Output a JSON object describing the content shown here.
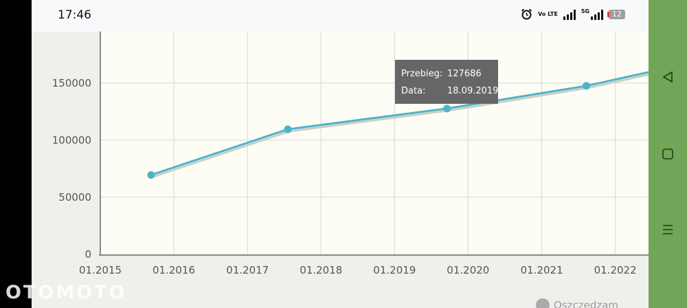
{
  "status_bar": {
    "time": "17:46",
    "volte": "Vo LTE",
    "network": "5G",
    "battery": "12"
  },
  "chart_data": {
    "type": "line",
    "x_tick_labels": [
      "01.2015",
      "01.2016",
      "01.2017",
      "01.2018",
      "01.2019",
      "01.2020",
      "01.2021",
      "01.2022"
    ],
    "y_tick_labels": [
      "0",
      "50000",
      "100000",
      "150000"
    ],
    "xlim": [
      "2015-01-01",
      "2022-06-15"
    ],
    "ylim": [
      0,
      195000
    ],
    "series": [
      {
        "color": "#4db3c8",
        "points": [
          {
            "x": "2015-09-10",
            "y": 69500
          },
          {
            "x": "2017-07-20",
            "y": 109500
          },
          {
            "x": "2019-09-18",
            "y": 127686
          },
          {
            "x": "2021-08-10",
            "y": 147500
          },
          {
            "x": "2022-06-15",
            "y": 159500
          }
        ]
      }
    ],
    "grid": true
  },
  "tooltip": {
    "label_mileage": "Przebieg:",
    "value_mileage": "127686",
    "label_date": "Data:",
    "value_date": "18.09.2019"
  },
  "watermark": "OTOMOTO",
  "footer": {
    "save_label": "Oszczędzam"
  },
  "colors": {
    "line": "#4db3c8",
    "plot_bg": "#fdfdf6",
    "tooltip_bg": "#666666",
    "nav_bar": "#71a557"
  }
}
